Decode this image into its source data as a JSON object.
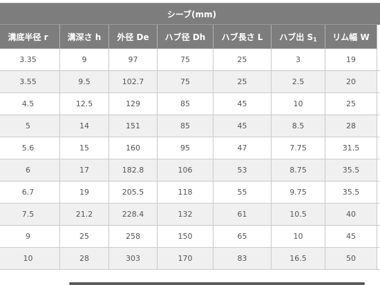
{
  "table": {
    "group_header": "シーブ(mm)",
    "columns": [
      {
        "label": "溝底半径 r"
      },
      {
        "label": "溝深さ h"
      },
      {
        "label": "外径 De"
      },
      {
        "label": "ハブ径 Dh"
      },
      {
        "label": "ハブ長さ L"
      },
      {
        "label": "ハブ出 S",
        "sub": "1"
      },
      {
        "label": "リム幅 W"
      }
    ],
    "rows": [
      [
        "3.35",
        "9",
        "97",
        "75",
        "25",
        "3",
        "19"
      ],
      [
        "3.55",
        "9.5",
        "102.7",
        "75",
        "25",
        "2.5",
        "20"
      ],
      [
        "4.5",
        "12.5",
        "129",
        "85",
        "45",
        "10",
        "25"
      ],
      [
        "5",
        "14",
        "151",
        "85",
        "45",
        "8.5",
        "28"
      ],
      [
        "5.6",
        "15",
        "160",
        "95",
        "47",
        "7.75",
        "31.5"
      ],
      [
        "6",
        "17",
        "182.8",
        "106",
        "53",
        "8.75",
        "35.5"
      ],
      [
        "6.7",
        "19",
        "205.5",
        "118",
        "55",
        "9.75",
        "35.5"
      ],
      [
        "7.5",
        "21.2",
        "228.4",
        "132",
        "61",
        "10.5",
        "40"
      ],
      [
        "9",
        "25",
        "258",
        "150",
        "65",
        "10",
        "45"
      ],
      [
        "10",
        "28",
        "303",
        "170",
        "83",
        "16.5",
        "50"
      ]
    ]
  }
}
